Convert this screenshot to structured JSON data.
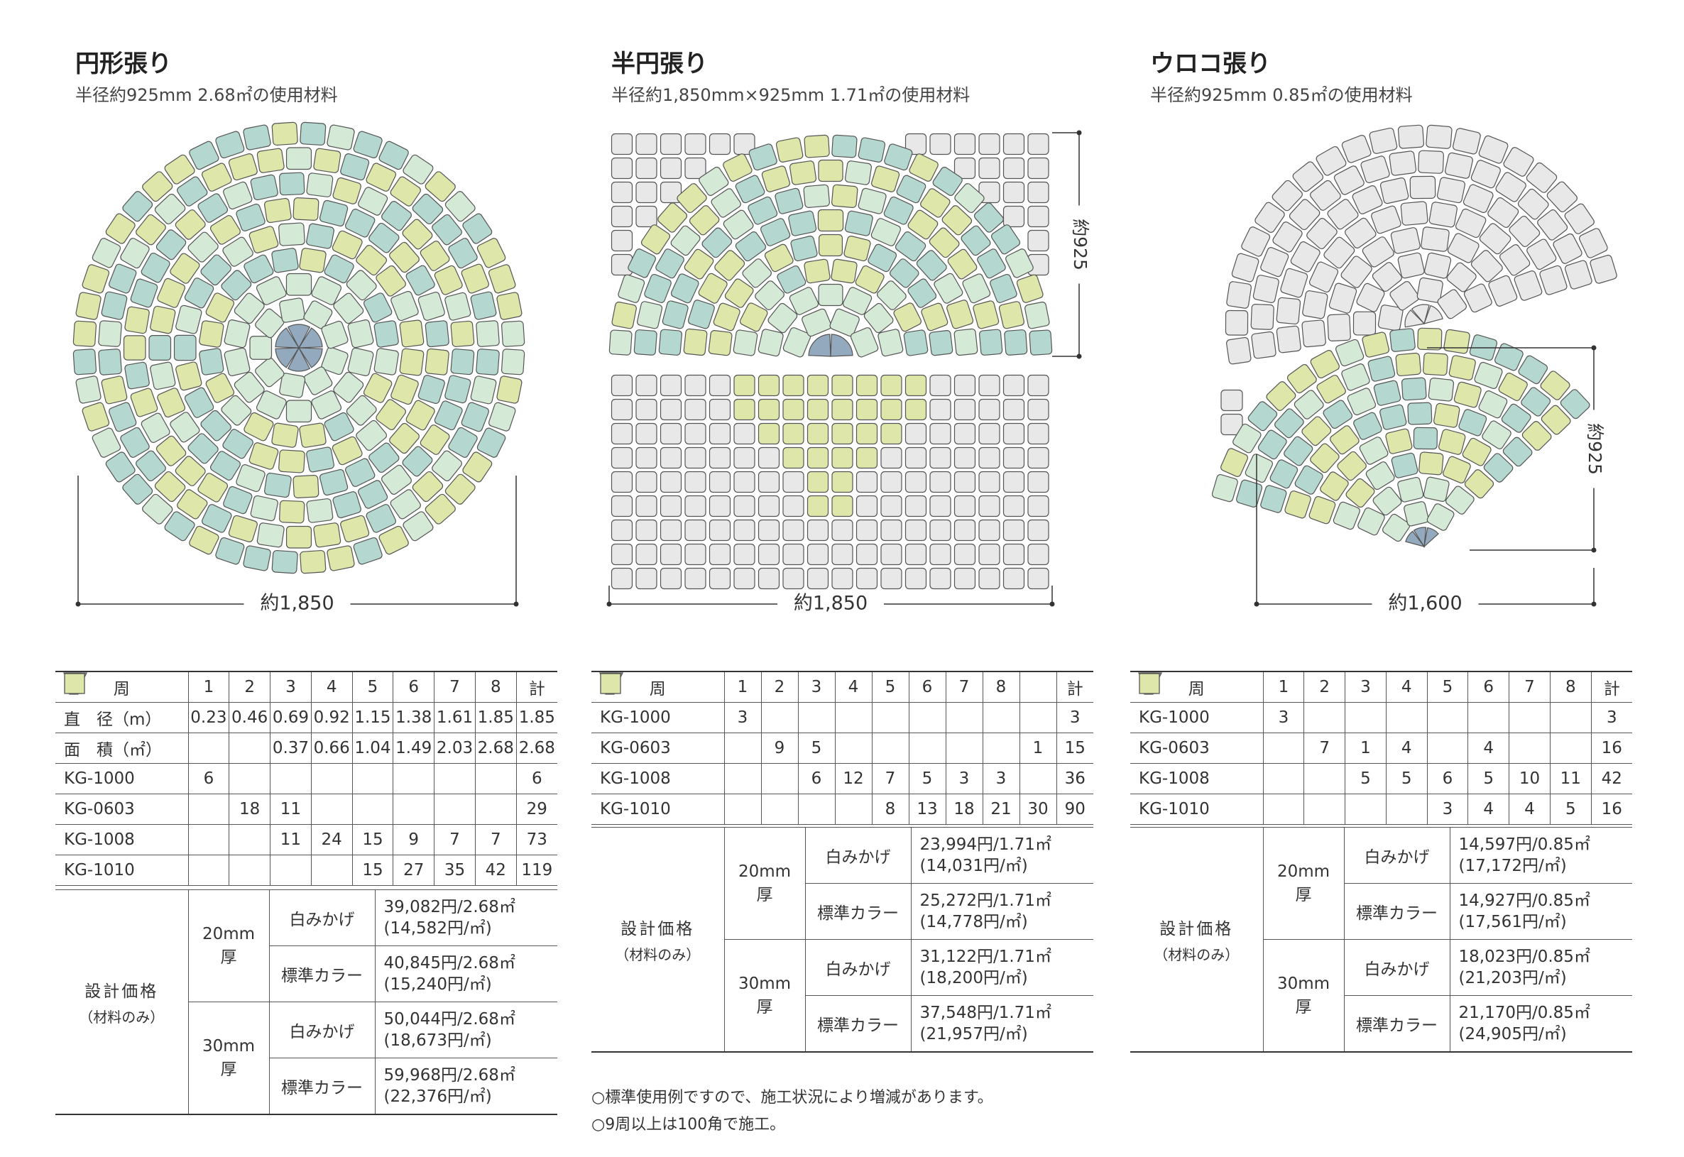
{
  "sections": [
    {
      "title": "円形張り",
      "subtitle": "半径約925mm 2.68㎡の使用材料",
      "width_label": "約1,850",
      "table": {
        "header": [
          "周",
          1,
          2,
          3,
          4,
          5,
          6,
          7,
          8,
          "計"
        ],
        "rows": [
          [
            "直　径（m）",
            0.23,
            0.46,
            0.69,
            0.92,
            1.15,
            1.38,
            1.61,
            1.85,
            1.85
          ],
          [
            "面　積（㎡）",
            null,
            null,
            0.37,
            0.66,
            1.04,
            1.49,
            2.03,
            2.68,
            2.68
          ],
          [
            "KG-1000",
            6,
            null,
            null,
            null,
            null,
            null,
            null,
            null,
            6
          ],
          [
            "KG-0603",
            null,
            18,
            11,
            null,
            null,
            null,
            null,
            null,
            29
          ],
          [
            "KG-1008",
            null,
            null,
            11,
            24,
            15,
            9,
            7,
            7,
            73
          ],
          [
            "KG-1010",
            null,
            null,
            null,
            null,
            15,
            27,
            35,
            42,
            119
          ]
        ]
      },
      "price": {
        "label": "設計価格",
        "sublabel": "（材料のみ）",
        "groups": [
          {
            "thickness": [
              "20mm",
              "厚"
            ],
            "items": [
              {
                "kind": "白みかげ",
                "price": "39,082円/2.68㎡",
                "unit_price": "(14,582円/㎡)"
              },
              {
                "kind": "標準カラー",
                "price": "40,845円/2.68㎡",
                "unit_price": "(15,240円/㎡)"
              }
            ]
          },
          {
            "thickness": [
              "30mm",
              "厚"
            ],
            "items": [
              {
                "kind": "白みかげ",
                "price": "50,044円/2.68㎡",
                "unit_price": "(18,673円/㎡)"
              },
              {
                "kind": "標準カラー",
                "price": "59,968円/2.68㎡",
                "unit_price": "(22,376円/㎡)"
              }
            ]
          }
        ]
      }
    },
    {
      "title": "半円張り",
      "subtitle": "半径約1,850mm×925mm 1.71㎡の使用材料",
      "width_label": "約1,850",
      "height_label": "約925",
      "table": {
        "header": [
          "周",
          1,
          2,
          3,
          4,
          5,
          6,
          7,
          8,
          null,
          "計"
        ],
        "rows": [
          [
            "KG-1000",
            3,
            null,
            null,
            null,
            null,
            null,
            null,
            null,
            null,
            3
          ],
          [
            "KG-0603",
            null,
            9,
            5,
            null,
            null,
            null,
            null,
            null,
            1,
            15
          ],
          [
            "KG-1008",
            null,
            null,
            6,
            12,
            7,
            5,
            3,
            3,
            null,
            36
          ],
          [
            "KG-1010",
            null,
            null,
            null,
            null,
            8,
            13,
            18,
            21,
            30,
            90
          ]
        ]
      },
      "price": {
        "label": "設計価格",
        "sublabel": "（材料のみ）",
        "groups": [
          {
            "thickness": [
              "20mm",
              "厚"
            ],
            "items": [
              {
                "kind": "白みかげ",
                "price": "23,994円/1.71㎡",
                "unit_price": "(14,031円/㎡)"
              },
              {
                "kind": "標準カラー",
                "price": "25,272円/1.71㎡",
                "unit_price": "(14,778円/㎡)"
              }
            ]
          },
          {
            "thickness": [
              "30mm",
              "厚"
            ],
            "items": [
              {
                "kind": "白みかげ",
                "price": "31,122円/1.71㎡",
                "unit_price": "(18,200円/㎡)"
              },
              {
                "kind": "標準カラー",
                "price": "37,548円/1.71㎡",
                "unit_price": "(21,957円/㎡)"
              }
            ]
          }
        ]
      }
    },
    {
      "title": "ウロコ張り",
      "subtitle": "半径約925mm 0.85㎡の使用材料",
      "width_label": "約1,600",
      "height_label": "約925",
      "table": {
        "header": [
          "周",
          1,
          2,
          3,
          4,
          5,
          6,
          7,
          8,
          "計"
        ],
        "rows": [
          [
            "KG-1000",
            3,
            null,
            null,
            null,
            null,
            null,
            null,
            null,
            3
          ],
          [
            "KG-0603",
            null,
            7,
            1,
            4,
            null,
            4,
            null,
            null,
            16
          ],
          [
            "KG-1008",
            null,
            null,
            5,
            5,
            6,
            5,
            10,
            11,
            42
          ],
          [
            "KG-1010",
            null,
            null,
            null,
            null,
            3,
            4,
            4,
            5,
            16
          ]
        ]
      },
      "price": {
        "label": "設計価格",
        "sublabel": "（材料のみ）",
        "groups": [
          {
            "thickness": [
              "20mm",
              "厚"
            ],
            "items": [
              {
                "kind": "白みかげ",
                "price": "14,597円/0.85㎡",
                "unit_price": "(17,172円/㎡)"
              },
              {
                "kind": "標準カラー",
                "price": "14,927円/0.85㎡",
                "unit_price": "(17,561円/㎡)"
              }
            ]
          },
          {
            "thickness": [
              "30mm",
              "厚"
            ],
            "items": [
              {
                "kind": "白みかげ",
                "price": "18,023円/0.85㎡",
                "unit_price": "(21,203円/㎡)"
              },
              {
                "kind": "標準カラー",
                "price": "21,170円/0.85㎡",
                "unit_price": "(24,905円/㎡)"
              }
            ]
          }
        ]
      }
    }
  ],
  "notes": [
    "○標準使用例ですので、施工状況により増減があります。",
    "○9周以上は100角で施工。"
  ]
}
